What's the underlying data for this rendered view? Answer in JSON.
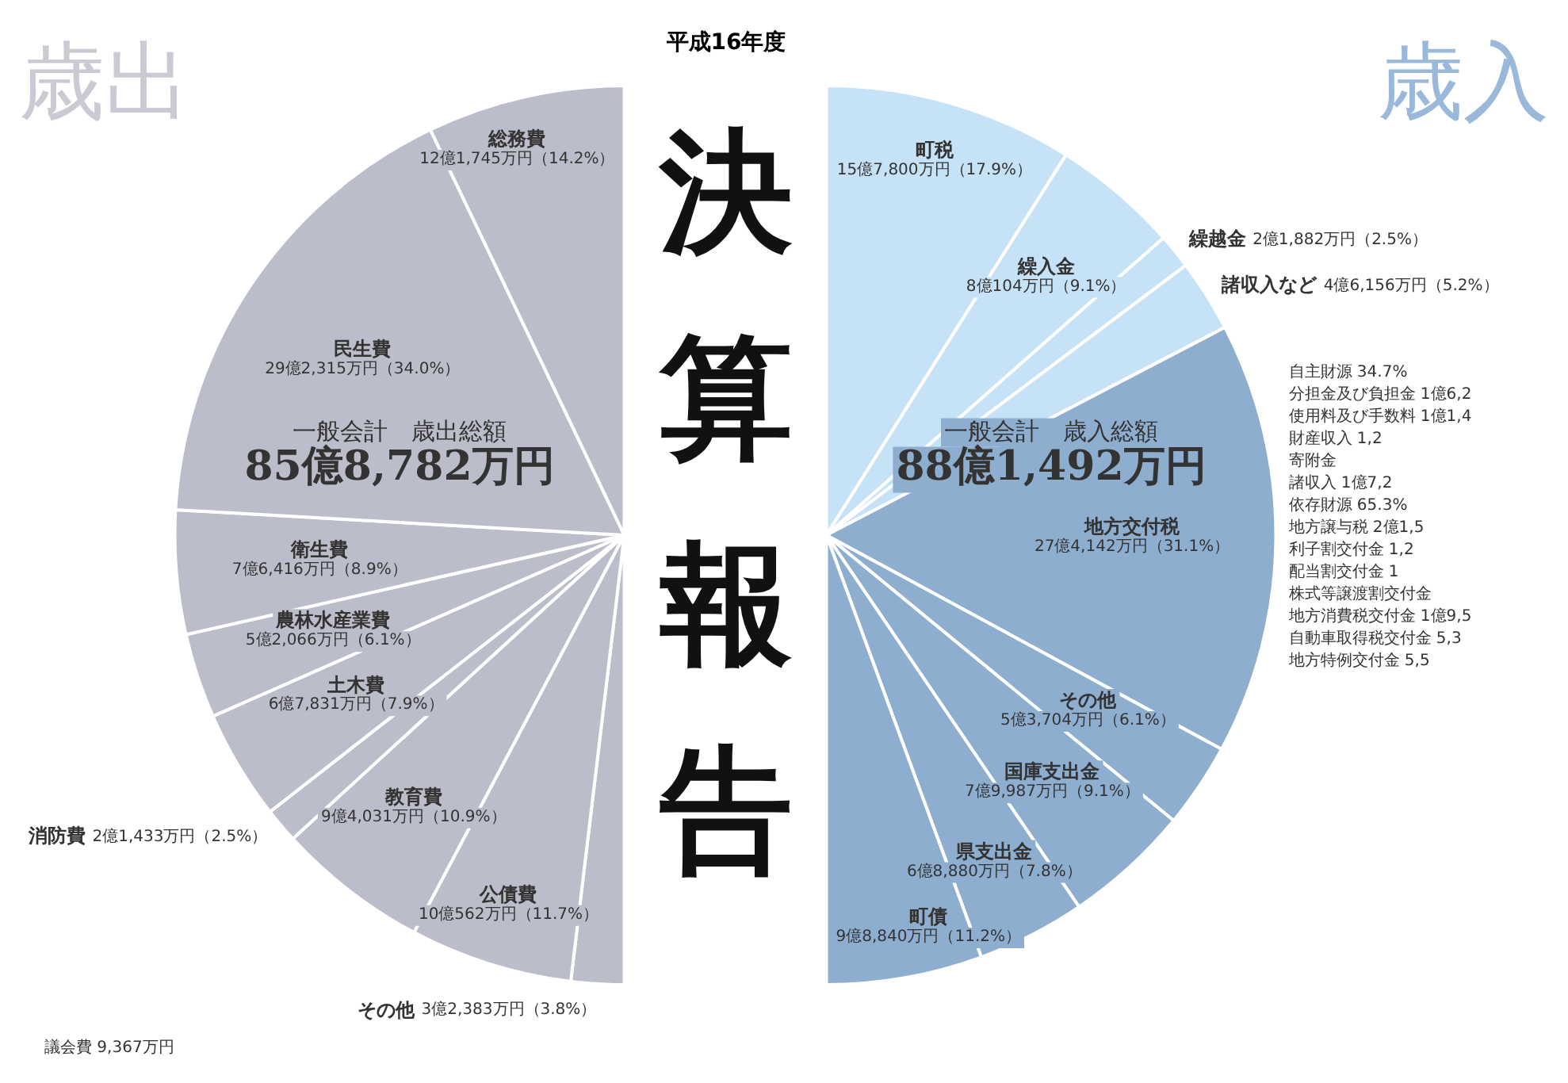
{
  "chart_data": [
    {
      "type": "pie",
      "title": "歳出",
      "categories": [
        "その他",
        "公債費",
        "教育費",
        "消防費",
        "土木費",
        "農林水産業費",
        "衛生費",
        "民生費",
        "総務費"
      ],
      "values": [
        3.8,
        11.7,
        10.9,
        2.5,
        7.9,
        6.1,
        8.9,
        34.0,
        14.2
      ],
      "value_labels": [
        "3億2,383万円（3.8%）",
        "10億562万円（11.7%）",
        "9億4,031万円（10.9%）",
        "2億1,433万円（2.5%）",
        "6億7,831万円（7.9%）",
        "5億2,066万円（6.1%）",
        "7億6,416万円（8.9%）",
        "29億2,315万円（34.0%）",
        "12億1,745万円（14.2%）"
      ],
      "colors": [
        "#bcbdca",
        "#bcbdca",
        "#bcbdca",
        "#bcbdca",
        "#bcbdca",
        "#bcbdca",
        "#bcbdca",
        "#bcbdca",
        "#bcbdca"
      ],
      "annotations": [
        "議会費 9,367万円",
        "一般会計　歳出総額",
        "85億8,782万円"
      ]
    },
    {
      "type": "other",
      "title": "決算報告",
      "subtitle": "平成16年度"
    },
    {
      "type": "pie",
      "title": "歳入",
      "categories": [
        "町税",
        "繰入金",
        "繰越金",
        "諸収入など",
        "地方交付税",
        "その他",
        "国庫支出金",
        "県支出金",
        "町債"
      ],
      "values": [
        17.9,
        9.1,
        2.5,
        5.2,
        31.1,
        6.1,
        9.1,
        7.8,
        11.2
      ],
      "value_labels": [
        "15億7,800万円（17.9%）",
        "8億104万円（9.1%）",
        "2億1,882万円（2.5%）",
        "4億6,156万円（5.2%）",
        "27億4,142万円（31.1%）",
        "5億3,704万円（6.1%）",
        "7億9,987万円（9.1%）",
        "6億8,880万円（7.8%）",
        "9億8,840万円（11.2%）"
      ],
      "colors": [
        "#c6e2f7",
        "#c6e2f7",
        "#c6e2f7",
        "#c6e2f7",
        "#8eaed0",
        "#8eaed0",
        "#8eaed0",
        "#8eaed0",
        "#8eaed0"
      ],
      "annotations": [
        "自主財源 34.7%",
        "分担金及び負担金 1億6,2",
        "使用料及び手数料 1億1,4",
        "財産収入 1,2",
        "寄附金",
        "諸収入 1億7,2",
        "依存財源 65.3%",
        "地方譲与税 2億1,5",
        "利子割交付金 1,2",
        "配当割交付金 1",
        "株式等譲渡割交付金",
        "地方消費税交付金 1億9,5",
        "自動車取得税交付金 5,3",
        "地方特例交付金 5,5",
        "一般会計　歳入総額",
        "88億1,492万円"
      ]
    }
  ]
}
